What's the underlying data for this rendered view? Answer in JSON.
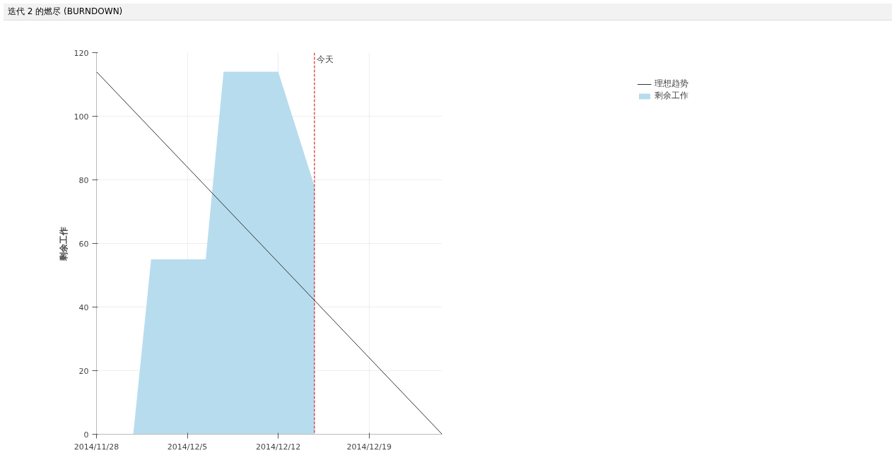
{
  "chart_data": {
    "type": "area",
    "title": "迭代 2 的燃尽 (BURNDOWN)",
    "ylabel": "剩余工作",
    "series": [
      {
        "name": "理想趋势",
        "type": "line",
        "color": "#333333",
        "x": [
          "2014-11-28",
          "2014-12-24T15:00"
        ],
        "values": [
          114,
          0
        ]
      },
      {
        "name": "剩余工作",
        "color": "#b7dcee",
        "x": [
          "2014-11-30T20:00",
          "2014-12-02T05:00",
          "2014-12-06T10:00",
          "2014-12-07T19:00",
          "2014-12-12",
          "2014-12-14T19:00"
        ],
        "values": [
          0,
          55,
          55,
          114,
          114,
          78
        ]
      }
    ],
    "xlim": [
      "2014-11-28",
      "2014-12-24T15:00"
    ],
    "xticks": [
      {
        "value": "2014-11-28",
        "label": "2014/11/28"
      },
      {
        "value": "2014-12-05",
        "label": "2014/12/5"
      },
      {
        "value": "2014-12-12",
        "label": "2014/12/12"
      },
      {
        "value": "2014-12-19",
        "label": "2014/12/19"
      }
    ],
    "ylim": [
      0,
      120
    ],
    "yticks": [
      0,
      20,
      40,
      60,
      80,
      100,
      120
    ],
    "ref_lines": [
      {
        "axis": "x",
        "value": "2014-12-14T19:00",
        "label": "今天",
        "color": "#cc0000",
        "line_style": "dashed"
      }
    ],
    "grid": true,
    "legend": "top right"
  }
}
